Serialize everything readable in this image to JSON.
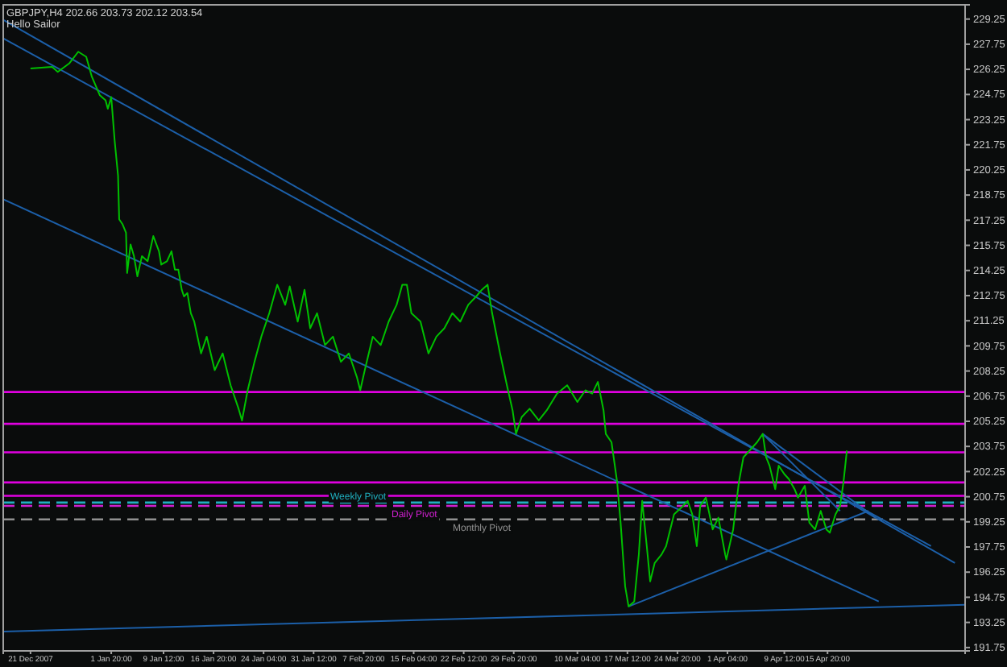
{
  "chart_data": {
    "type": "line",
    "title": "GBPJPY,H4  202.66 203.73 202.12 203.54",
    "subtitle": "Hello Sailor",
    "xlim": [
      "2007-12-17",
      "2008-05-06"
    ],
    "ylim": [
      191.55,
      230.1
    ],
    "xticks": [
      {
        "value": "2007-12-21",
        "label": "21 Dec 2007"
      },
      {
        "value": "2008-01-01T20:00",
        "label": "1 Jan 20:00"
      },
      {
        "value": "2008-01-09T12:00",
        "label": "9 Jan 12:00"
      },
      {
        "value": "2008-01-16T20:00",
        "label": "16 Jan 20:00"
      },
      {
        "value": "2008-01-24T04:00",
        "label": "24 Jan 04:00"
      },
      {
        "value": "2008-01-31T12:00",
        "label": "31 Jan 12:00"
      },
      {
        "value": "2008-02-07T20:00",
        "label": "7 Feb 20:00"
      },
      {
        "value": "2008-02-15T04:00",
        "label": "15 Feb 04:00"
      },
      {
        "value": "2008-02-22T12:00",
        "label": "22 Feb 12:00"
      },
      {
        "value": "2008-02-29T20:00",
        "label": "29 Feb 20:00"
      },
      {
        "value": "2008-03-10T04:00",
        "label": "10 Mar 04:00"
      },
      {
        "value": "2008-03-17T12:00",
        "label": "17 Mar 12:00"
      },
      {
        "value": "2008-03-24T20:00",
        "label": "24 Mar 20:00"
      },
      {
        "value": "2008-04-01T04:00",
        "label": "1 Apr 04:00"
      },
      {
        "value": "2008-04-09T12:00",
        "label": "9 Apr 12:00"
      },
      {
        "value": "2008-04-15T20:00",
        "label": "15 Apr 20:00"
      }
    ],
    "yticks": [
      191.75,
      193.25,
      194.75,
      196.25,
      197.75,
      199.25,
      200.75,
      202.25,
      203.75,
      205.25,
      206.75,
      208.25,
      209.75,
      211.25,
      212.75,
      214.25,
      215.75,
      217.25,
      218.75,
      220.25,
      221.75,
      223.25,
      224.75,
      226.25,
      227.75,
      229.25
    ],
    "grid": false,
    "series": [
      {
        "color": "#00c000",
        "x": [
          "2007-12-21T00:00",
          "2007-12-24T04:00",
          "2007-12-25T00:00",
          "2007-12-26T16:00",
          "2007-12-28T00:00",
          "2007-12-29T04:00",
          "2007-12-30T00:00",
          "2007-12-31T04:00",
          "2008-01-01T00:00",
          "2008-01-01T08:00",
          "2008-01-01T20:00",
          "2008-01-02T08:00",
          "2008-01-02T20:00",
          "2008-01-03T00:00",
          "2008-01-03T12:00",
          "2008-01-04T00:00",
          "2008-01-04T04:00",
          "2008-01-04T16:00",
          "2008-01-05T04:00",
          "2008-01-05T16:00",
          "2008-01-06T08:00",
          "2008-01-07T04:00",
          "2008-01-08T00:00",
          "2008-01-08T20:00",
          "2008-01-09T04:00",
          "2008-01-10T00:00",
          "2008-01-10T16:00",
          "2008-01-11T04:00",
          "2008-01-11T16:00",
          "2008-01-12T04:00",
          "2008-01-12T12:00",
          "2008-01-13T00:00",
          "2008-01-13T12:00",
          "2008-01-14T00:00",
          "2008-01-15T00:00",
          "2008-01-15T20:00",
          "2008-01-17T00:00",
          "2008-01-18T04:00",
          "2008-01-19T08:00",
          "2008-01-20T12:00",
          "2008-01-21T00:00",
          "2008-01-21T20:00",
          "2008-01-22T20:00",
          "2008-01-23T20:00",
          "2008-01-25T00:00",
          "2008-01-26T04:00",
          "2008-01-27T08:00",
          "2008-01-28T00:00",
          "2008-01-29T04:00",
          "2008-01-30T04:00",
          "2008-01-31T00:00",
          "2008-02-01T00:00",
          "2008-02-02T04:00",
          "2008-02-03T08:00",
          "2008-02-04T12:00",
          "2008-02-05T16:00",
          "2008-02-06T20:00",
          "2008-02-07T08:00",
          "2008-02-08T00:00",
          "2008-02-09T04:00",
          "2008-02-10T08:00",
          "2008-02-11T12:00",
          "2008-02-12T16:00",
          "2008-02-13T12:00",
          "2008-02-14T04:00",
          "2008-02-14T20:00",
          "2008-02-16T04:00",
          "2008-02-17T08:00",
          "2008-02-18T12:00",
          "2008-02-19T16:00",
          "2008-02-20T20:00",
          "2008-02-22T00:00",
          "2008-02-23T04:00",
          "2008-02-24T08:00",
          "2008-02-25T04:00",
          "2008-02-26T00:00",
          "2008-02-26T16:00",
          "2008-02-27T20:00",
          "2008-02-28T20:00",
          "2008-02-29T16:00",
          "2008-03-01T04:00",
          "2008-03-02T00:00",
          "2008-03-03T04:00",
          "2008-03-04T12:00",
          "2008-03-05T16:00",
          "2008-03-07T04:00",
          "2008-03-08T16:00",
          "2008-03-10T04:00",
          "2008-03-11T08:00",
          "2008-03-12T08:00",
          "2008-03-13T04:00",
          "2008-03-14T00:00",
          "2008-03-14T08:00",
          "2008-03-15T04:00",
          "2008-03-16T00:00",
          "2008-03-16T12:00",
          "2008-03-16T20:00",
          "2008-03-17T04:00",
          "2008-03-17T16:00",
          "2008-03-18T12:00",
          "2008-03-19T04:00",
          "2008-03-19T16:00",
          "2008-03-20T08:00",
          "2008-03-20T20:00",
          "2008-03-21T12:00",
          "2008-03-22T12:00",
          "2008-03-23T04:00",
          "2008-03-24T08:00",
          "2008-03-25T16:00",
          "2008-03-26T08:00",
          "2008-03-27T00:00",
          "2008-03-27T16:00",
          "2008-03-28T04:00",
          "2008-03-29T00:00",
          "2008-03-30T00:00",
          "2008-03-30T20:00",
          "2008-03-31T20:00",
          "2008-04-01T00:00",
          "2008-04-02T00:00",
          "2008-04-02T20:00",
          "2008-04-03T12:00",
          "2008-04-04T04:00",
          "2008-04-05T12:00",
          "2008-04-06T08:00",
          "2008-04-06T20:00",
          "2008-04-07T08:00",
          "2008-04-08T04:00",
          "2008-04-08T16:00",
          "2008-04-09T12:00",
          "2008-04-10T04:00",
          "2008-04-11T00:00",
          "2008-04-11T12:00",
          "2008-04-12T12:00",
          "2008-04-13T04:00",
          "2008-04-14T00:00",
          "2008-04-14T20:00",
          "2008-04-15T16:00",
          "2008-04-16T04:00",
          "2008-04-17T00:00",
          "2008-04-17T16:00",
          "2008-04-18T04:00",
          "2008-04-18T16:00"
        ],
        "values": [
          226.3,
          226.4,
          226.1,
          226.6,
          227.3,
          227.0,
          225.8,
          224.7,
          224.4,
          223.9,
          224.6,
          222.0,
          219.9,
          217.3,
          217.0,
          216.5,
          214.1,
          215.8,
          215.1,
          213.9,
          215.1,
          214.8,
          216.3,
          215.4,
          214.6,
          214.8,
          215.4,
          214.3,
          214.3,
          213.1,
          212.7,
          212.9,
          211.7,
          211.2,
          209.3,
          210.3,
          208.3,
          209.3,
          207.4,
          206.0,
          205.3,
          207.1,
          208.8,
          210.3,
          211.7,
          213.4,
          212.2,
          213.3,
          211.2,
          213.1,
          210.8,
          211.7,
          209.8,
          210.3,
          208.8,
          209.3,
          207.9,
          207.1,
          208.3,
          210.3,
          209.8,
          211.2,
          212.2,
          213.4,
          213.4,
          211.7,
          211.2,
          209.3,
          210.3,
          210.8,
          211.7,
          211.2,
          212.2,
          212.7,
          213.1,
          213.4,
          211.7,
          209.3,
          207.4,
          205.9,
          204.5,
          205.5,
          206.0,
          205.3,
          205.9,
          206.9,
          207.4,
          206.4,
          207.1,
          206.9,
          207.6,
          205.9,
          204.5,
          204.0,
          201.6,
          199.2,
          197.3,
          195.4,
          194.2,
          194.5,
          197.3,
          200.5,
          197.8,
          195.7,
          196.8,
          197.3,
          197.8,
          199.7,
          200.2,
          200.5,
          199.7,
          197.8,
          200.2,
          200.7,
          198.8,
          199.5,
          197.3,
          197.0,
          198.8,
          201.6,
          203.1,
          203.4,
          204.0,
          204.5,
          203.1,
          202.6,
          201.2,
          202.6,
          202.1,
          201.8,
          201.2,
          200.7,
          201.4,
          199.2,
          198.8,
          199.9,
          198.8,
          198.6,
          199.7,
          200.2,
          201.6,
          203.5
        ]
      },
      {
        "color": "#1c5fa8",
        "x": [
          "2007-12-17",
          "2008-05-04T12:00"
        ],
        "values": [
          229.2,
          196.8
        ]
      },
      {
        "color": "#1c5fa8",
        "x": [
          "2007-12-17",
          "2008-05-01T00:00"
        ],
        "values": [
          228.1,
          197.8
        ]
      },
      {
        "color": "#1c5fa8",
        "x": [
          "2007-12-17",
          "2008-04-23T08:00"
        ],
        "values": [
          218.5,
          194.5
        ]
      },
      {
        "color": "#1c5fa8",
        "x": [
          "2008-03-17T16:00",
          "2008-04-21T20:00"
        ],
        "values": [
          194.2,
          199.9
        ]
      },
      {
        "color": "#1c5fa8",
        "x": [
          "2007-12-17",
          "2008-05-06"
        ],
        "values": [
          192.7,
          194.3
        ]
      },
      {
        "color": "#1c5fa8",
        "x": [
          "2008-04-06T08:00",
          "2008-04-22T20:00"
        ],
        "values": [
          204.5,
          199.5
        ]
      },
      {
        "color": "#1c5fa8",
        "x": [
          "2008-04-06T08:00",
          "2008-04-17T16:00"
        ],
        "values": [
          204.5,
          199.9
        ]
      }
    ],
    "ref_lines": [
      {
        "axis": "y",
        "value": 207.0,
        "label": null,
        "color": "#e000e0",
        "line_style": "solid"
      },
      {
        "axis": "y",
        "value": 205.1,
        "label": null,
        "color": "#e000e0",
        "line_style": "solid"
      },
      {
        "axis": "y",
        "value": 203.4,
        "label": null,
        "color": "#e000e0",
        "line_style": "solid"
      },
      {
        "axis": "y",
        "value": 201.6,
        "label": null,
        "color": "#e000e0",
        "line_style": "solid"
      },
      {
        "axis": "y",
        "value": 200.8,
        "label": null,
        "color": "#e000e0",
        "line_style": "solid"
      },
      {
        "axis": "y",
        "value": 200.4,
        "label": "Weekly Pivot",
        "color": "#20b0c0",
        "line_style": "dashed"
      },
      {
        "axis": "y",
        "value": 200.2,
        "label": "Daily Pivot",
        "color": "#d020d0",
        "line_style": "dashed"
      },
      {
        "axis": "y",
        "value": 199.4,
        "label": "Monthly Pivot",
        "color": "#909090",
        "line_style": "dashed"
      }
    ]
  }
}
